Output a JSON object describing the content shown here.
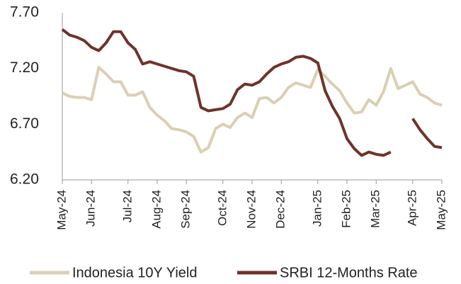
{
  "chart_data": {
    "type": "line",
    "categories": [
      "May-24",
      null,
      null,
      null,
      "Jun-24",
      null,
      null,
      null,
      null,
      "Jul-24",
      null,
      null,
      null,
      "Aug-24",
      null,
      null,
      null,
      "Sep-24",
      null,
      null,
      null,
      null,
      "Oct-24",
      null,
      null,
      null,
      "Nov-24",
      null,
      null,
      null,
      "Dec-24",
      null,
      null,
      null,
      null,
      "Jan-25",
      null,
      null,
      null,
      "Feb-25",
      null,
      null,
      null,
      "Mar-25",
      null,
      null,
      null,
      null,
      "Apr-25",
      null,
      null,
      null,
      "May-25"
    ],
    "series": [
      {
        "name": "Indonesia 10Y Yield",
        "color": "#dacfb2",
        "values": [
          6.98,
          6.95,
          6.94,
          6.94,
          6.92,
          7.21,
          7.15,
          7.08,
          7.08,
          6.96,
          6.96,
          6.99,
          6.85,
          6.78,
          6.73,
          6.66,
          6.65,
          6.63,
          6.59,
          6.45,
          6.49,
          6.66,
          6.7,
          6.67,
          6.76,
          6.8,
          6.76,
          6.93,
          6.94,
          6.89,
          6.94,
          7.03,
          7.07,
          7.05,
          7.03,
          7.19,
          7.13,
          7.06,
          7.0,
          6.89,
          6.8,
          6.81,
          6.92,
          6.87,
          6.99,
          7.2,
          7.02,
          7.05,
          7.08,
          6.97,
          6.94,
          6.89,
          6.87
        ]
      },
      {
        "name": "SRBI 12-Months Rate",
        "color": "#6e3329",
        "values": [
          7.55,
          7.5,
          7.48,
          7.45,
          7.39,
          7.36,
          7.43,
          7.53,
          7.53,
          7.43,
          7.37,
          7.24,
          7.26,
          7.24,
          7.22,
          7.2,
          7.18,
          7.17,
          7.13,
          6.85,
          6.82,
          6.83,
          6.84,
          6.88,
          7.01,
          7.06,
          7.05,
          7.08,
          7.15,
          7.21,
          7.24,
          7.26,
          7.3,
          7.31,
          7.29,
          7.25,
          7.0,
          6.86,
          6.75,
          6.57,
          6.48,
          6.42,
          6.45,
          6.43,
          6.42,
          6.45,
          null,
          null,
          6.75,
          6.65,
          6.57,
          6.5,
          6.49
        ]
      }
    ],
    "ylim": [
      6.2,
      7.7
    ],
    "yticks": [
      {
        "value": 6.2,
        "label": "6.20"
      },
      {
        "value": 6.7,
        "label": "6.70"
      },
      {
        "value": 7.2,
        "label": "7.20"
      },
      {
        "value": 7.7,
        "label": "7.70"
      }
    ],
    "legend": "bottom"
  }
}
